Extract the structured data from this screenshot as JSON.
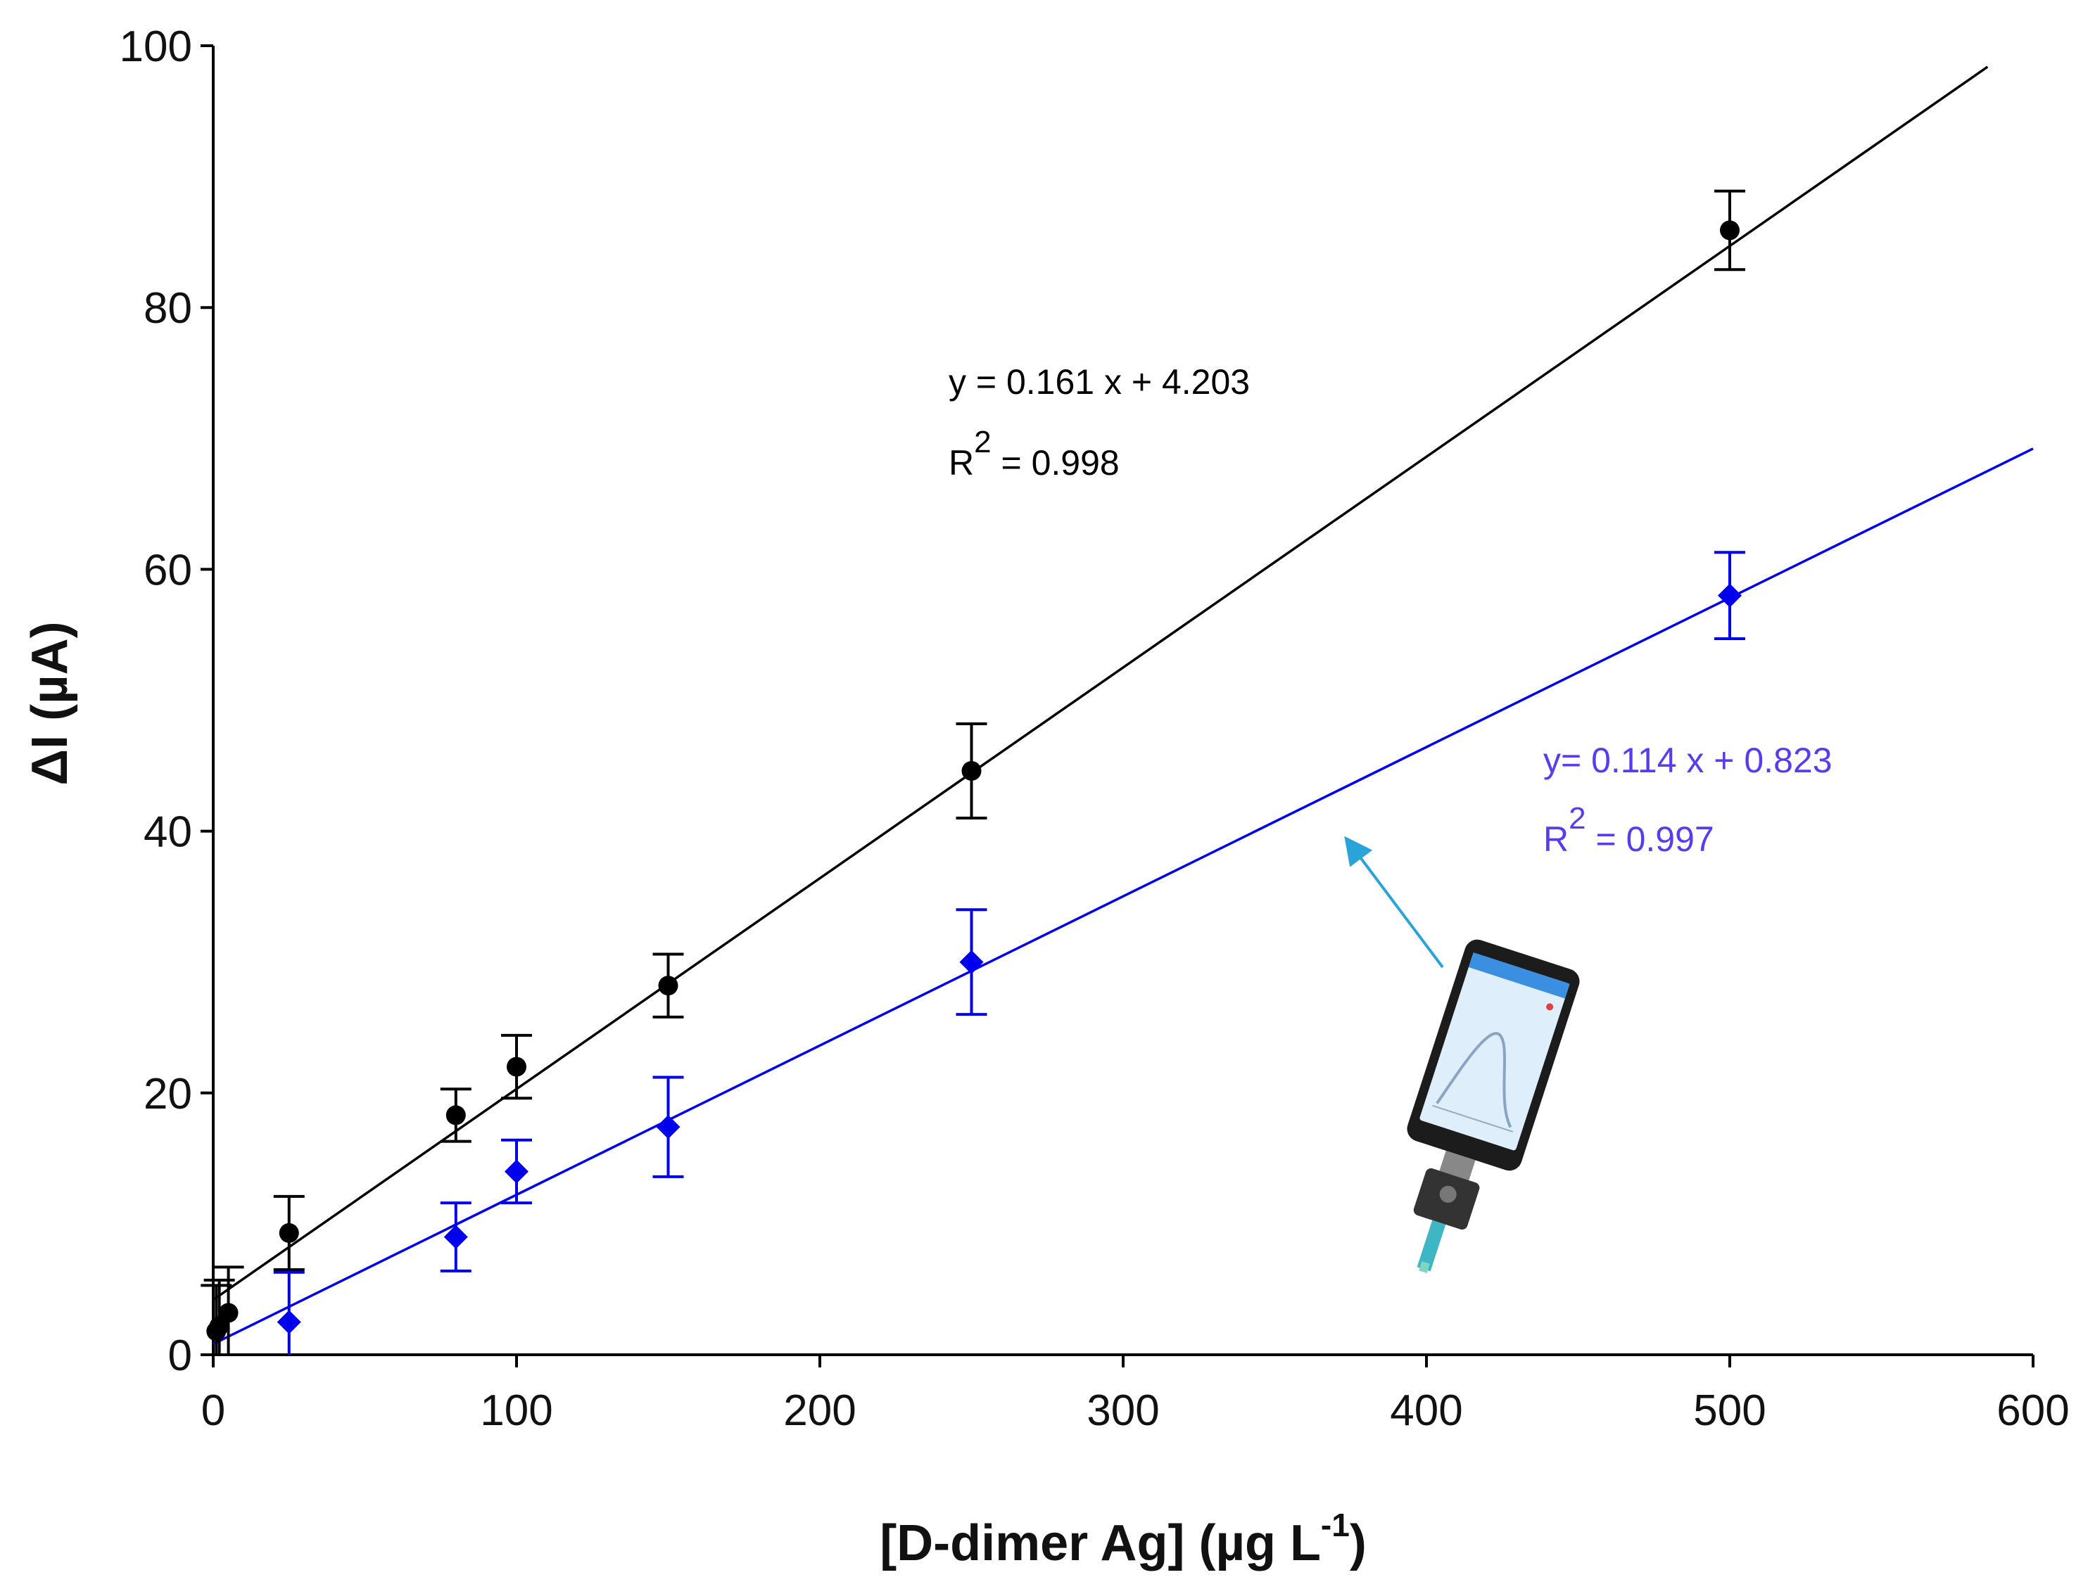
{
  "chart_data": {
    "type": "scatter",
    "title": "",
    "xlabel": "[D-dimer Ag] (µg L",
    "xlabel_sup": "-1",
    "xlabel_end": ")",
    "ylabel": "ΔI (µA)",
    "xlim": [
      0,
      600
    ],
    "ylim": [
      0,
      100
    ],
    "xticks": [
      0,
      100,
      200,
      300,
      400,
      500,
      600
    ],
    "yticks": [
      0,
      20,
      40,
      60,
      80,
      100
    ],
    "grid": false,
    "series": [
      {
        "name": "black series",
        "color": "#000000",
        "marker": "circle",
        "x": [
          1,
          2,
          5,
          25,
          80,
          100,
          150,
          250,
          500
        ],
        "y": [
          1.8,
          2.2,
          3.2,
          9.3,
          18.3,
          22.0,
          28.2,
          44.6,
          85.9
        ],
        "err": [
          3.5,
          3.5,
          3.5,
          2.8,
          2.0,
          2.4,
          2.4,
          3.6,
          3.0
        ],
        "fit": {
          "slope": 0.161,
          "intercept": 4.203,
          "x_range": [
            0,
            585
          ]
        },
        "equation": "y = 0.161 x +  4.203",
        "r2_label": "R",
        "r2_sup": "2",
        "r2_value": " = 0.998",
        "equation_position": "upper-middle"
      },
      {
        "name": "blue series",
        "color": "#0000ee",
        "text_color": "#5a3cf0",
        "marker": "diamond",
        "x": [
          25,
          80,
          100,
          150,
          250,
          500
        ],
        "y": [
          2.5,
          9.0,
          14.0,
          17.4,
          30.0,
          58.0
        ],
        "err": [
          3.8,
          2.6,
          2.4,
          3.8,
          4.0,
          3.3
        ],
        "fit": {
          "slope": 0.114,
          "intercept": 0.823,
          "x_range": [
            0,
            600
          ]
        },
        "equation": "y= 0.114 x + 0.823",
        "r2_label": "R",
        "r2_sup": "2",
        "r2_value": " = 0.997",
        "equation_position": "right"
      }
    ],
    "annotations": [
      {
        "type": "arrow",
        "icon": "smartphone-with-sensor-icon",
        "color": "#2aa3d8",
        "from": [
          410,
          30
        ],
        "to": [
          375,
          39.5
        ]
      }
    ]
  }
}
